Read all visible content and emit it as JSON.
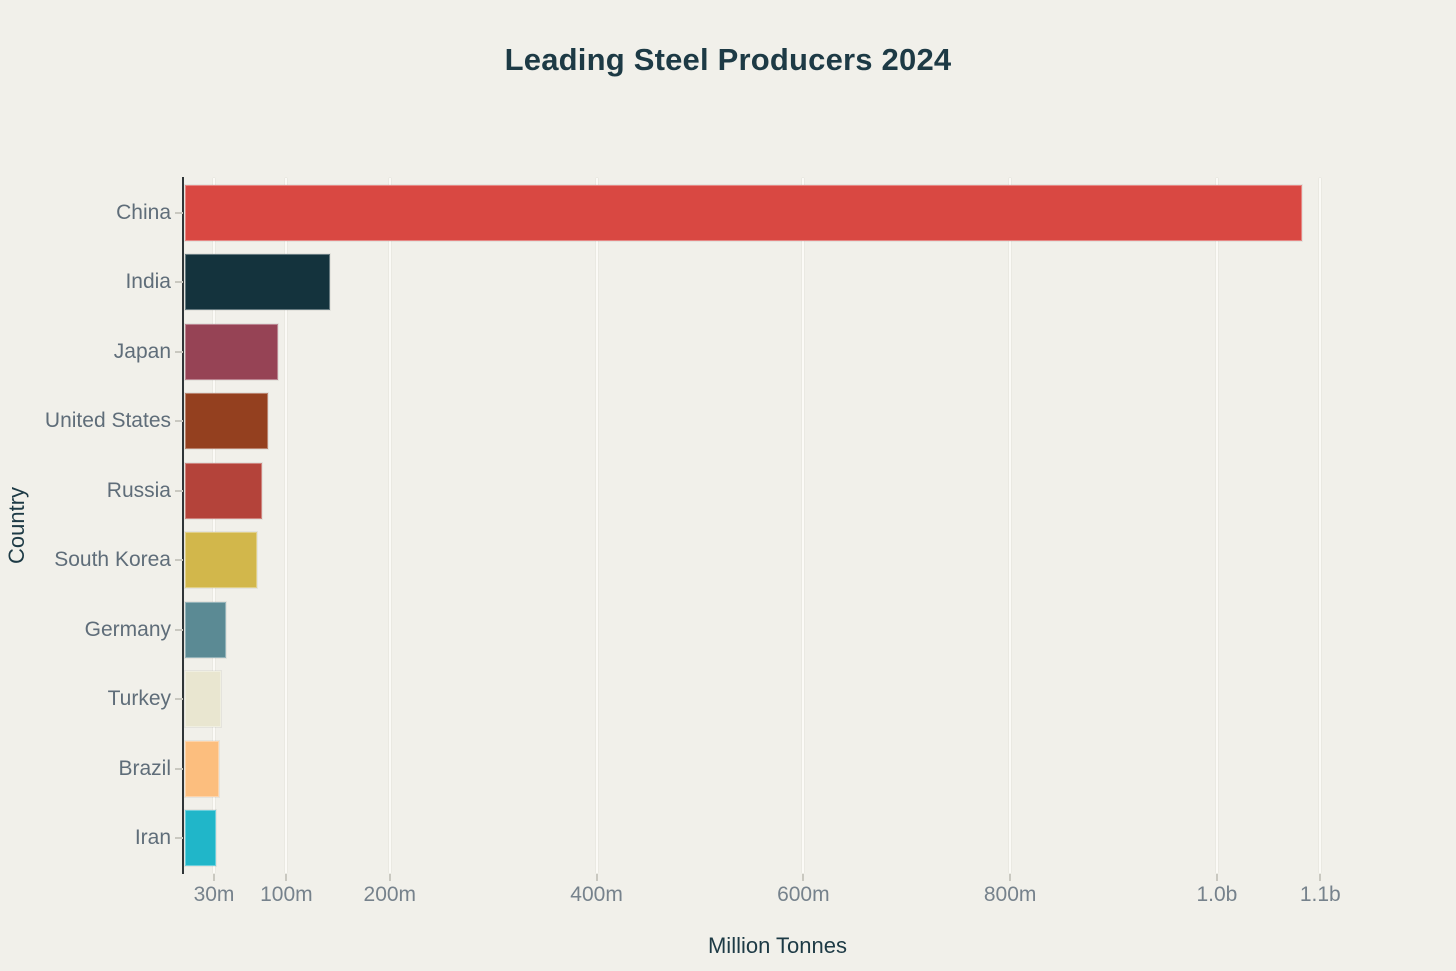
{
  "page": {
    "background_color": "#f1f0ea",
    "title_color": "#1d3a45",
    "tick_label_color": "#76828c",
    "category_label_color": "#5f6d79",
    "gridline_color": "#fbfaf6",
    "axis_line_color": "#2f3537"
  },
  "chart_data": {
    "type": "bar",
    "orientation": "horizontal",
    "title": "Leading Steel Producers 2024",
    "xlabel": "Million Tonnes",
    "ylabel": "Country",
    "grid": true,
    "legend": false,
    "xlim": [
      0,
      1150
    ],
    "categories": [
      "China",
      "India",
      "Japan",
      "United States",
      "Russia",
      "South Korea",
      "Germany",
      "Turkey",
      "Brazil",
      "Iran"
    ],
    "values": [
      1080,
      140,
      90,
      80,
      74,
      70,
      40,
      35,
      33,
      30
    ],
    "unit": "million tonnes",
    "bar_colors": [
      "#d94842",
      "#14333d",
      "#964355",
      "#94401f",
      "#b4433a",
      "#d2b74b",
      "#5b8a94",
      "#e9e6d0",
      "#fcbe7e",
      "#20b6c9"
    ],
    "x_ticks": [
      {
        "value": 30,
        "label": "30m"
      },
      {
        "value": 100,
        "label": "100m"
      },
      {
        "value": 200,
        "label": "200m"
      },
      {
        "value": 400,
        "label": "400m"
      },
      {
        "value": 600,
        "label": "600m"
      },
      {
        "value": 800,
        "label": "800m"
      },
      {
        "value": 1000,
        "label": "1.0b"
      },
      {
        "value": 1100,
        "label": "1.1b"
      }
    ]
  }
}
